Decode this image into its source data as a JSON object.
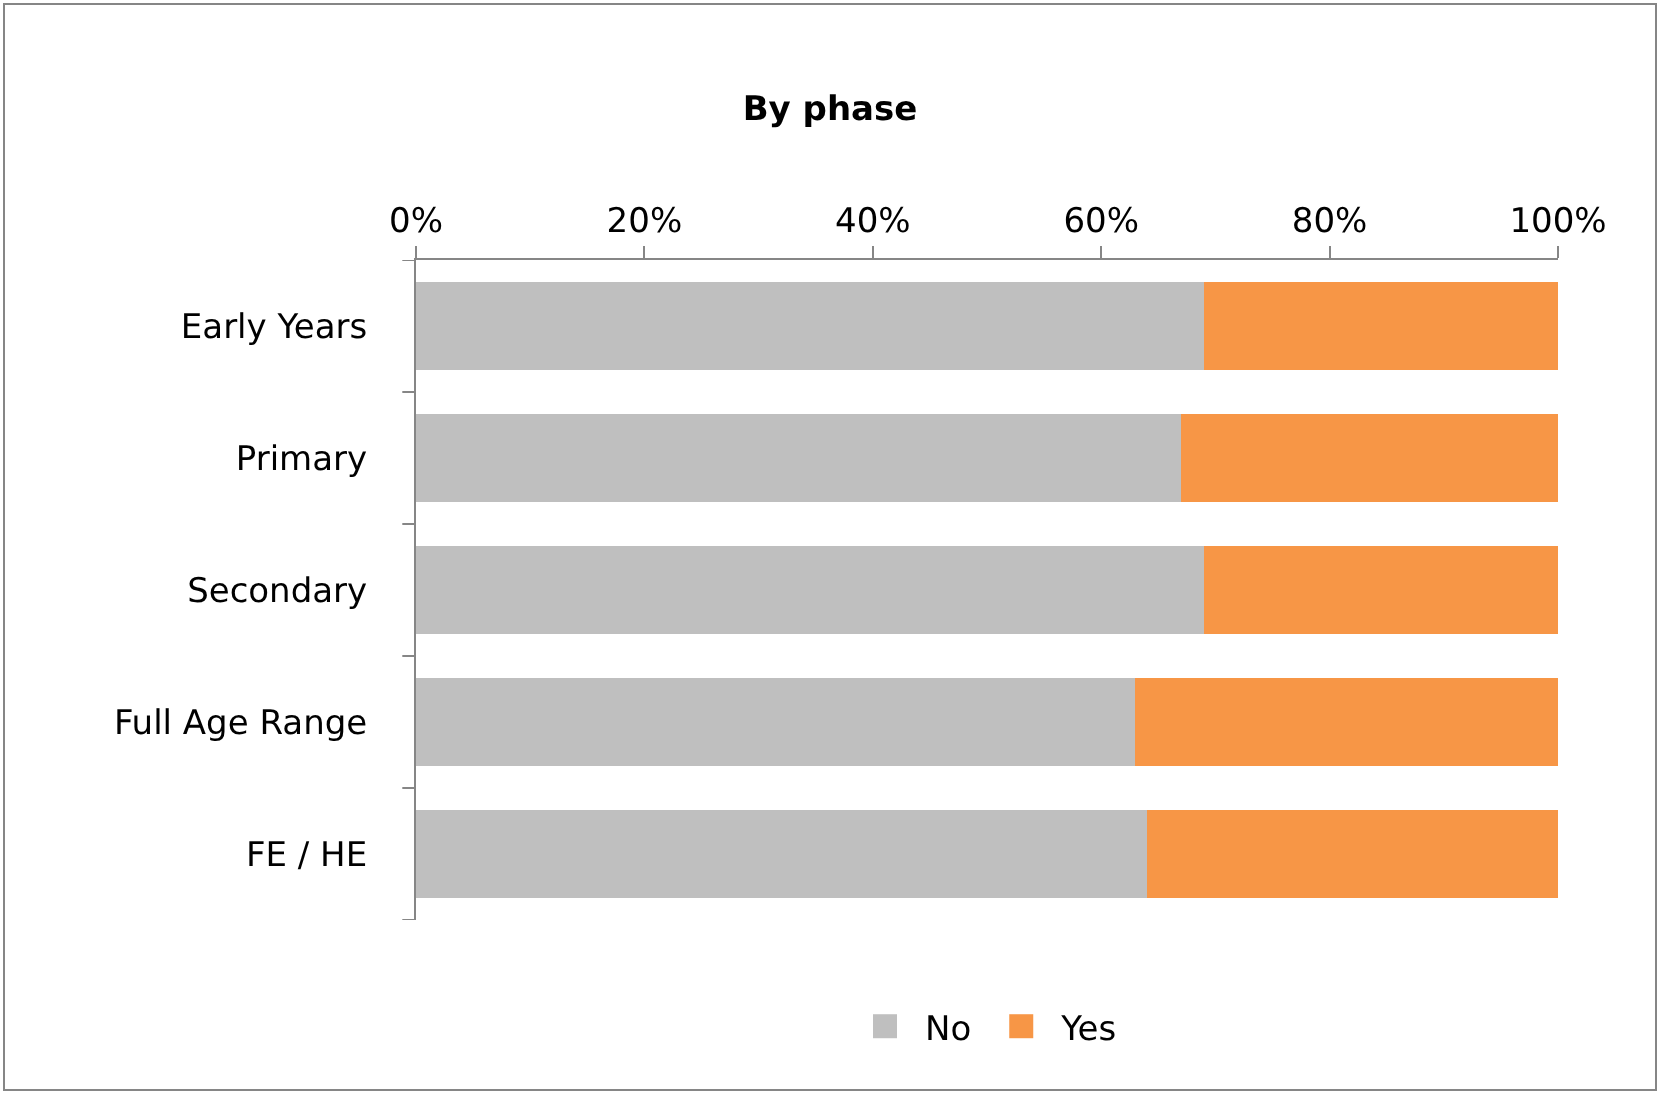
{
  "chart_data": {
    "type": "bar",
    "orientation": "horizontal",
    "stacked": true,
    "title": "By phase",
    "categories": [
      "Early Years",
      "Primary",
      "Secondary",
      "Full Age Range",
      "FE / HE"
    ],
    "series": [
      {
        "name": "No",
        "color": "#bfbfbf",
        "values": [
          69,
          67,
          69,
          63,
          64
        ]
      },
      {
        "name": "Yes",
        "color": "#f79646",
        "values": [
          31,
          33,
          31,
          37,
          36
        ]
      }
    ],
    "xlim": [
      0,
      100
    ],
    "xticks": [
      {
        "value": 0,
        "label": "0%"
      },
      {
        "value": 20,
        "label": "20%"
      },
      {
        "value": 40,
        "label": "40%"
      },
      {
        "value": 60,
        "label": "60%"
      },
      {
        "value": 80,
        "label": "80%"
      },
      {
        "value": 100,
        "label": "100%"
      }
    ],
    "legend": "bottom"
  }
}
